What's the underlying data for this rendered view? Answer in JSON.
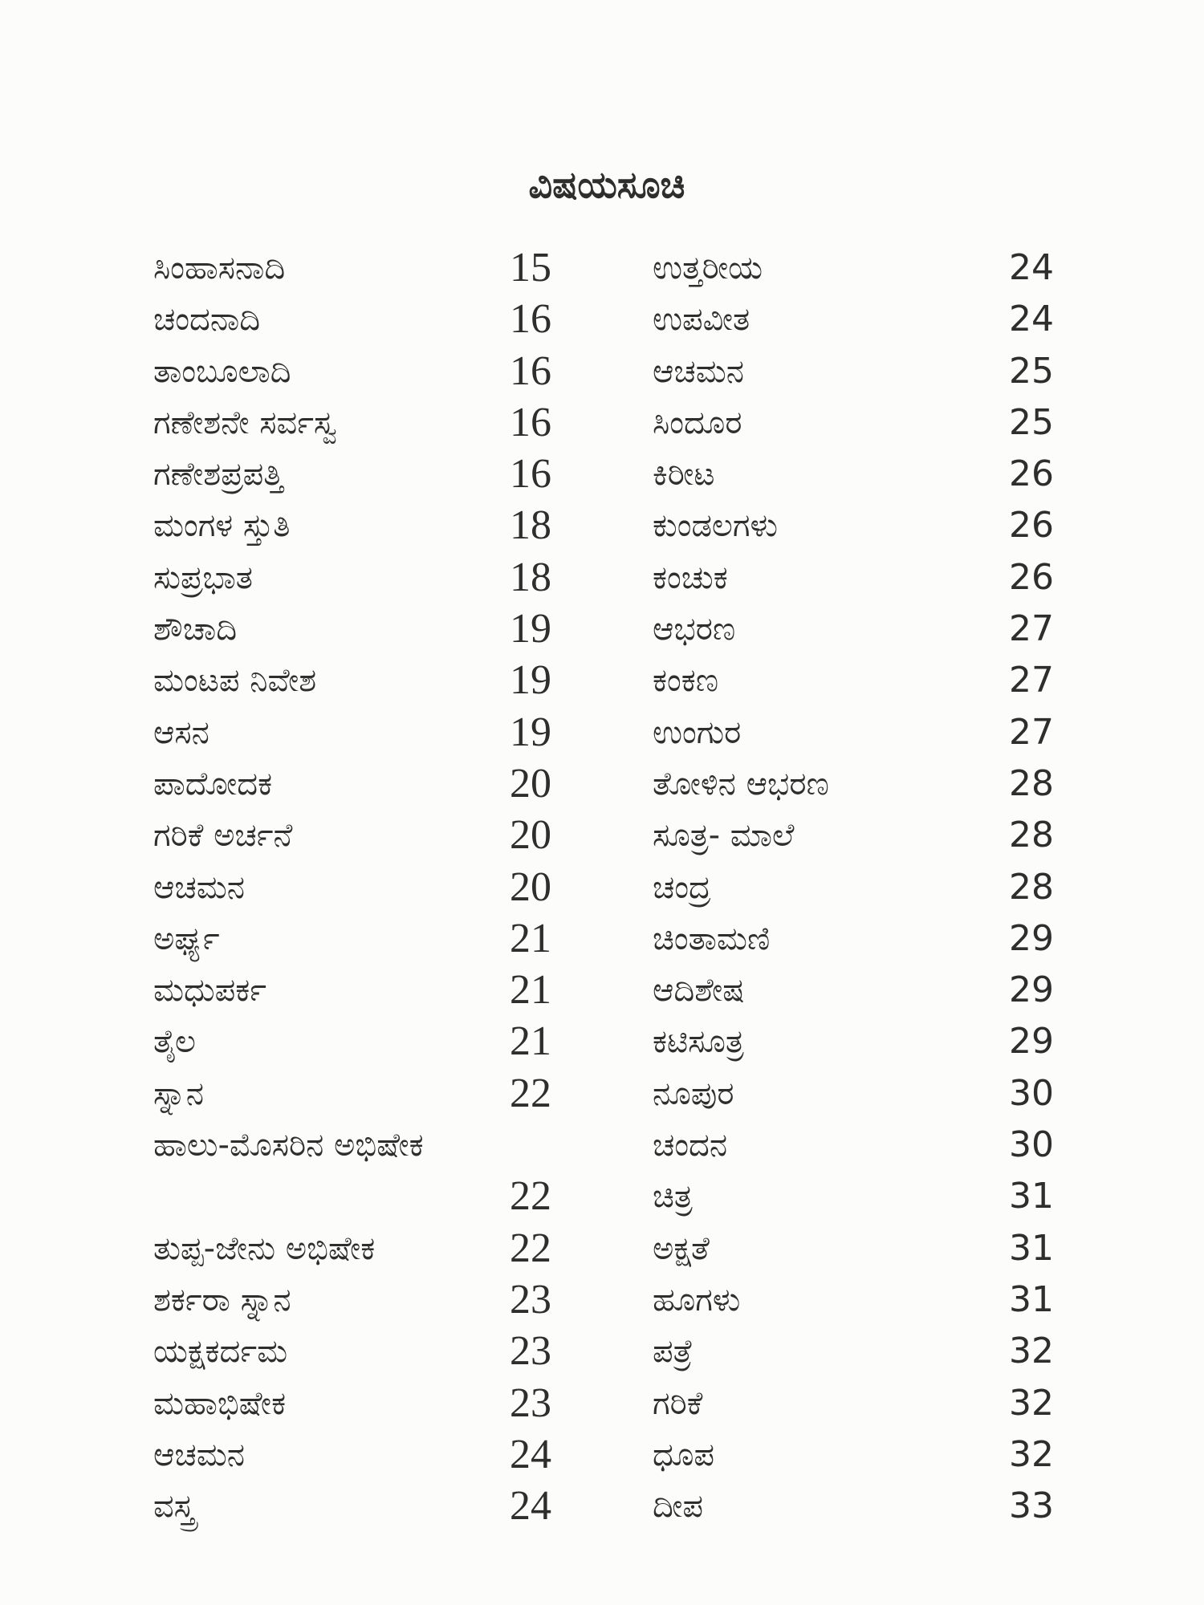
{
  "title": "ವಿಷಯಸೂಚಿ",
  "left_column": [
    {
      "label": "ಸಿಂಹಾಸನಾದಿ",
      "page": "15"
    },
    {
      "label": "ಚಂದನಾದಿ",
      "page": "16"
    },
    {
      "label": "ತಾಂಬೂಲಾದಿ",
      "page": "16"
    },
    {
      "label": "ಗಣೇಶನೇ ಸರ್ವಸ್ವ",
      "page": "16"
    },
    {
      "label": "ಗಣೇಶಪ್ರಪತ್ತಿ",
      "page": "16"
    },
    {
      "label": "ಮಂಗಳ ಸ್ತುತಿ",
      "page": "18"
    },
    {
      "label": "ಸುಪ್ರಭಾತ",
      "page": "18"
    },
    {
      "label": "ಶೌಚಾದಿ",
      "page": "19"
    },
    {
      "label": "ಮಂಟಪ ನಿವೇಶ",
      "page": "19"
    },
    {
      "label": "ಆಸನ",
      "page": "19"
    },
    {
      "label": "ಪಾದೋದಕ",
      "page": "20"
    },
    {
      "label": "ಗರಿಕೆ ಅರ್ಚನೆ",
      "page": "20"
    },
    {
      "label": "ಆಚಮನ",
      "page": "20"
    },
    {
      "label": "ಅರ್ಘ್ಯ",
      "page": "21"
    },
    {
      "label": "ಮಧುಪರ್ಕ",
      "page": "21"
    },
    {
      "label": "ತೈಲ",
      "page": "21"
    },
    {
      "label": "ಸ್ನಾನ",
      "page": "22"
    },
    {
      "label": "ಹಾಲು-ಮೊಸರಿನ ಅಭಿಷೇಕ",
      "page": ""
    },
    {
      "label": "",
      "page": "22"
    },
    {
      "label": "ತುಪ್ಪ-ಜೇನು ಅಭಿಷೇಕ",
      "page": "22"
    },
    {
      "label": "ಶರ್ಕರಾ ಸ್ನಾನ",
      "page": "23"
    },
    {
      "label": "ಯಕ್ಷಕರ್ದಮ",
      "page": "23"
    },
    {
      "label": "ಮಹಾಭಿಷೇಕ",
      "page": "23"
    },
    {
      "label": "ಆಚಮನ",
      "page": "24"
    },
    {
      "label": "ವಸ್ತ್ರ",
      "page": "24"
    }
  ],
  "right_column": [
    {
      "label": "ಉತ್ತರೀಯ",
      "page": "24"
    },
    {
      "label": "ಉಪವೀತ",
      "page": "24"
    },
    {
      "label": "ಆಚಮನ",
      "page": "25"
    },
    {
      "label": "ಸಿಂದೂರ",
      "page": "25"
    },
    {
      "label": "ಕಿರೀಟ",
      "page": "26"
    },
    {
      "label": "ಕುಂಡಲಗಳು",
      "page": "26"
    },
    {
      "label": "ಕಂಚುಕ",
      "page": "26"
    },
    {
      "label": "ಆಭರಣ",
      "page": "27"
    },
    {
      "label": "ಕಂಕಣ",
      "page": "27"
    },
    {
      "label": "ಉಂಗುರ",
      "page": "27"
    },
    {
      "label": "ತೋಳಿನ ಆಭರಣ",
      "page": "28"
    },
    {
      "label": "ಸೂತ್ರ- ಮಾಲೆ",
      "page": "28"
    },
    {
      "label": "ಚಂದ್ರ",
      "page": "28"
    },
    {
      "label": "ಚಿಂತಾಮಣಿ",
      "page": "29"
    },
    {
      "label": "ಆದಿಶೇಷ",
      "page": "29"
    },
    {
      "label": "ಕಟಿಸೂತ್ರ",
      "page": "29"
    },
    {
      "label": "ನೂಪುರ",
      "page": "30"
    },
    {
      "label": "ಚಂದನ",
      "page": "30"
    },
    {
      "label": "ಚಿತ್ರ",
      "page": "31"
    },
    {
      "label": "ಅಕ್ಷತೆ",
      "page": "31"
    },
    {
      "label": "ಹೂಗಳು",
      "page": "31"
    },
    {
      "label": "ಪತ್ರೆ",
      "page": "32"
    },
    {
      "label": "ಗರಿಕೆ",
      "page": "32"
    },
    {
      "label": "ಧೂಪ",
      "page": "32"
    },
    {
      "label": "ದೀಪ",
      "page": "33"
    }
  ]
}
